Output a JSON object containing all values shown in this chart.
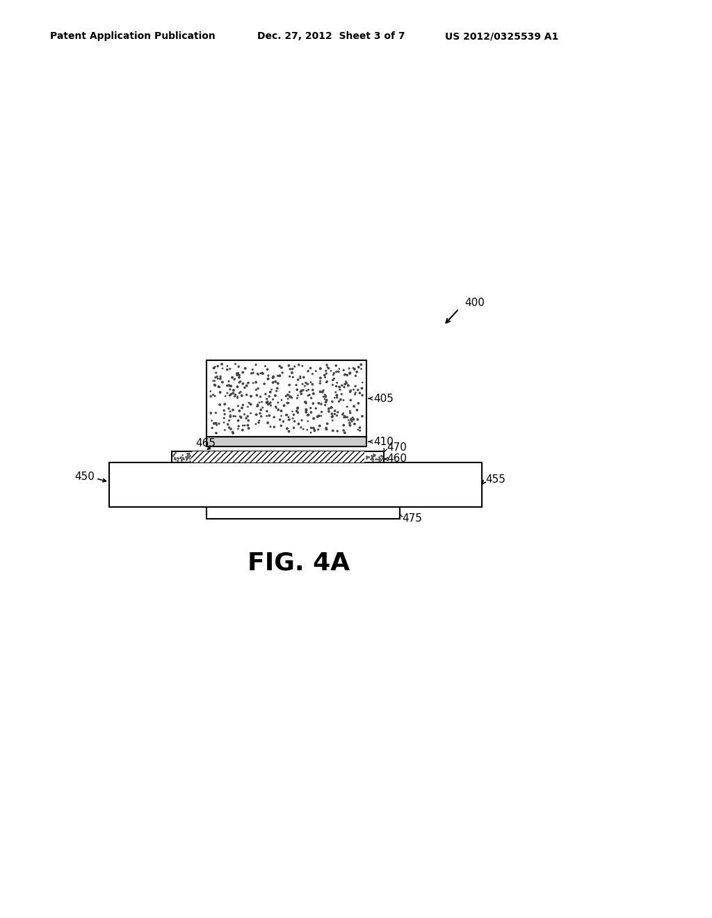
{
  "bg_color": "#ffffff",
  "header_left": "Patent Application Publication",
  "header_mid": "Dec. 27, 2012  Sheet 3 of 7",
  "header_right": "US 2012/0325539 A1",
  "header_fontsize": 10,
  "fig_label": "FIG. 4A",
  "fig_label_fontsize": 26,
  "ref_400": "400",
  "ref_405": "405",
  "ref_410": "410",
  "ref_450": "450",
  "ref_455": "455",
  "ref_460": "460",
  "ref_465": "465",
  "ref_470": "470",
  "ref_475": "475",
  "label_fontsize": 11
}
